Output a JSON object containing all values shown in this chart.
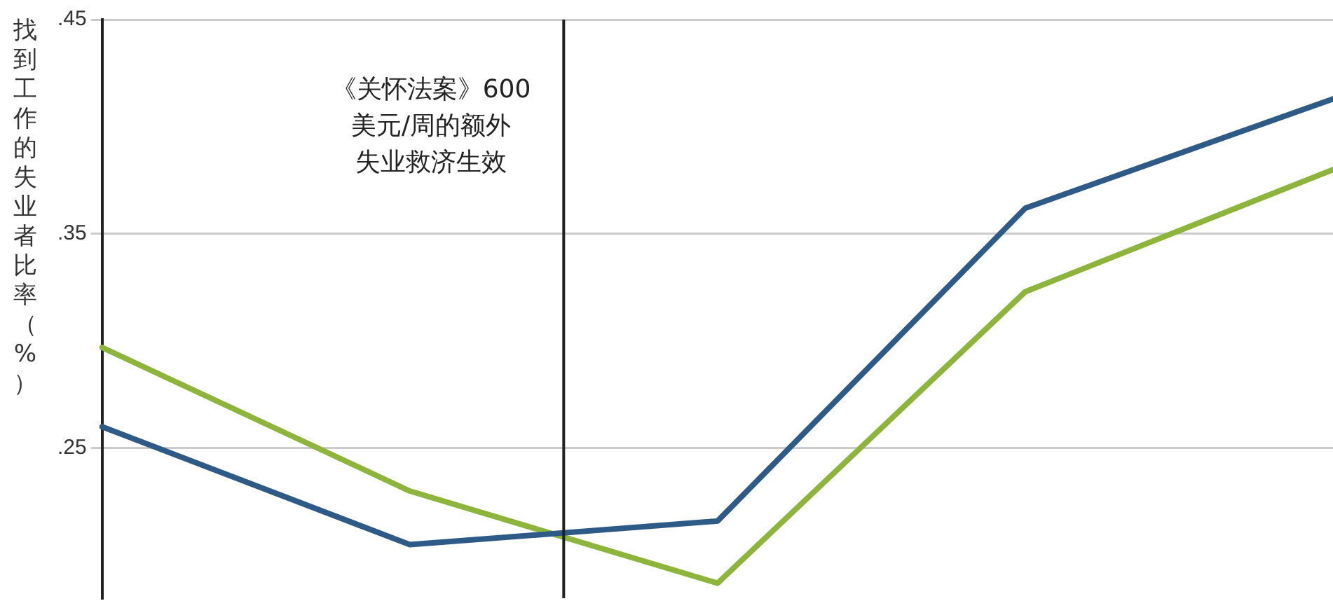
{
  "chart_data": {
    "type": "line",
    "ylabel": "找到工作的失业者比率（%）",
    "categories": [
      null,
      null,
      null,
      null,
      null
    ],
    "tick_labels": "y",
    "series": [
      {
        "color": "#2e5a87",
        "values": [
          0.26,
          0.205,
          0.216,
          0.362,
          0.413
        ]
      },
      {
        "color": "#8db53c",
        "values": [
          0.297,
          0.23,
          0.187,
          0.323,
          0.38
        ]
      }
    ],
    "ylim": [
      0.18,
      0.45
    ],
    "yticks": [
      {
        "value": 0.25,
        "label": ".25"
      },
      {
        "value": 0.35,
        "label": ".35"
      },
      {
        "value": 0.45,
        "label": ".45"
      }
    ],
    "annotations": [
      "《关怀法案》600",
      "美元/周的额外",
      "失业救济生效"
    ],
    "grid": "y",
    "legend": false,
    "marker": "none",
    "line_style": "solid"
  }
}
